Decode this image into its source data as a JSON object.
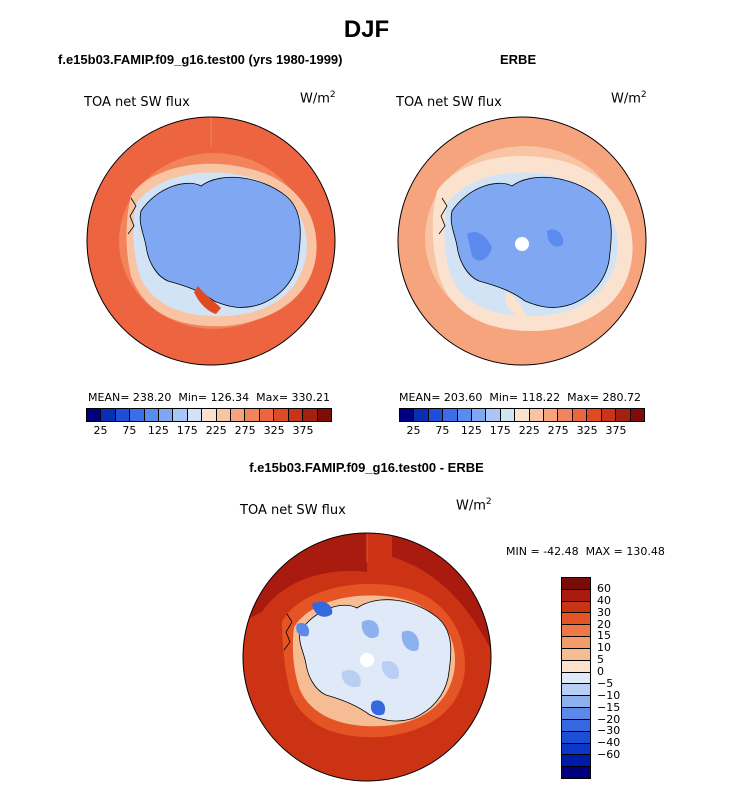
{
  "figure": {
    "title": "DJF"
  },
  "panels": {
    "model": {
      "title": "f.e15b03.FAMIP.f09_g16.test00 (yrs 1980-1999)",
      "variable": "TOA net SW flux",
      "units_base": "W/m",
      "units_exp": "2",
      "stats": "MEAN= 238.20  Min= 126.34  Max= 330.21"
    },
    "obs": {
      "title": "ERBE",
      "variable": "TOA net SW flux",
      "units_base": "W/m",
      "units_exp": "2",
      "stats": "MEAN= 203.60  Min= 118.22  Max= 280.72"
    },
    "diff": {
      "title": "f.e15b03.FAMIP.f09_g16.test00 - ERBE",
      "variable": "TOA net SW flux",
      "units_base": "W/m",
      "units_exp": "2",
      "stats": "MIN = -42.48  MAX = 130.48"
    }
  },
  "colorbar_abs": {
    "colors": [
      "#000080",
      "#0a2fb4",
      "#1f4fd9",
      "#3a6ee6",
      "#5b8bef",
      "#80a8f2",
      "#a9c6f4",
      "#d2e3f6",
      "#fbe2cf",
      "#f8c4a4",
      "#f6a47d",
      "#f2835a",
      "#ec6440",
      "#df4a25",
      "#c8341a",
      "#a5200f",
      "#7f0c07"
    ],
    "tick_labels": [
      "25",
      "75",
      "125",
      "175",
      "225",
      "275",
      "325",
      "375"
    ]
  },
  "colorbar_diff": {
    "colors": [
      "#7a0b08",
      "#a81b0e",
      "#cc3314",
      "#e45424",
      "#f07845",
      "#f39b6a",
      "#f6bd95",
      "#fbe2cf",
      "#dfe9f7",
      "#b9cef3",
      "#8db0ee",
      "#5e89e8",
      "#3568de",
      "#1c4fd5",
      "#0c37c7",
      "#001aa8",
      "#00007a"
    ],
    "tick_labels": [
      "60",
      "40",
      "30",
      "20",
      "15",
      "10",
      "5",
      "0",
      "−5",
      "−10",
      "−15",
      "−20",
      "−30",
      "−40",
      "−60"
    ]
  },
  "map_colors": {
    "ocean_model": "#ec6440",
    "ocean_model_light": "#f2835a",
    "ice_edge_light": "#fbe2cf",
    "ice_edge_mid": "#d2e3f6",
    "continent_model": "#80a8f2",
    "ocean_obs": "#f6a47d",
    "ocean_obs_light": "#f8c4a4",
    "continent_obs": "#80a8f2",
    "continent_obs_dark": "#5b8bef",
    "diff_ocean": "#cc3314",
    "diff_ocean_dark": "#a81b0e",
    "diff_ocean_light": "#e45424",
    "diff_continent": "#dfe9f7",
    "diff_continent_blue": "#8db0ee",
    "coastline": "#000000"
  }
}
